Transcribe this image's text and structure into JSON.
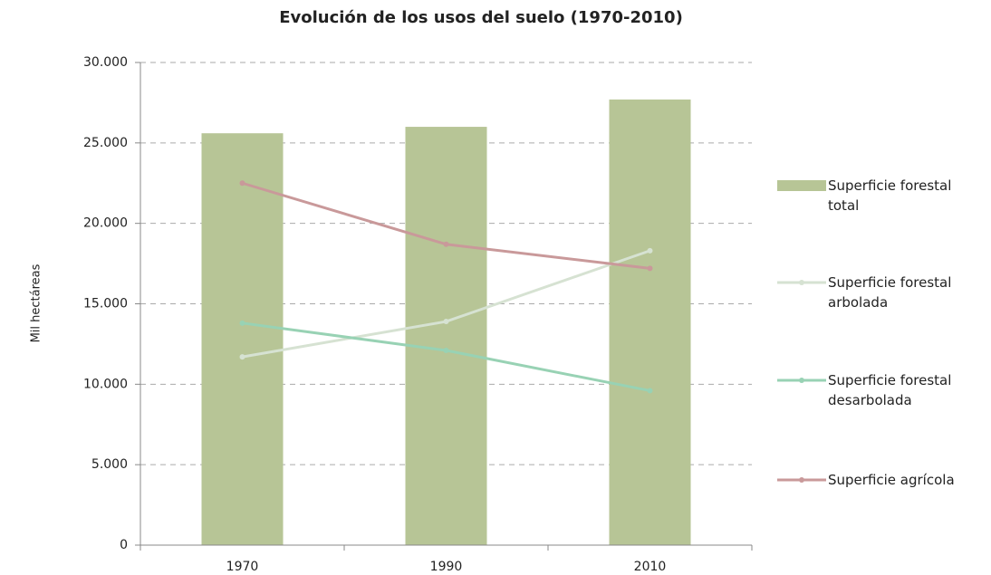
{
  "chart_data": {
    "type": "bar",
    "title": "Evolución de los usos del suelo (1970-2010)",
    "y_label": "Mil hectáreas",
    "categories": [
      "1970",
      "1990",
      "2010"
    ],
    "series": [
      {
        "name": "Superficie forestal total",
        "type": "bar",
        "color": "#b7c596",
        "values": [
          25600,
          26000,
          27700
        ]
      },
      {
        "name": "Superficie forestal arbolada",
        "type": "line",
        "color": "#d6e2d2",
        "values": [
          11700,
          13900,
          18300
        ]
      },
      {
        "name": "Superficie forestal desarbolada",
        "type": "line",
        "color": "#98d2b4",
        "values": [
          13800,
          12100,
          9600
        ]
      },
      {
        "name": "Superficie agrícola",
        "type": "line",
        "color": "#c9999a",
        "values": [
          22500,
          18700,
          17200
        ]
      }
    ],
    "ylim": [
      0,
      30000
    ],
    "yticks": [
      0,
      {
        "value": 5000,
        "label": "5.000"
      },
      {
        "value": 10000,
        "label": "10.000"
      },
      {
        "value": 15000,
        "label": "15.000"
      },
      {
        "value": 20000,
        "label": "20.000"
      },
      {
        "value": 25000,
        "label": "25.000"
      },
      {
        "value": 30000,
        "label": "30.000"
      }
    ],
    "grid": true,
    "legend": "right"
  }
}
